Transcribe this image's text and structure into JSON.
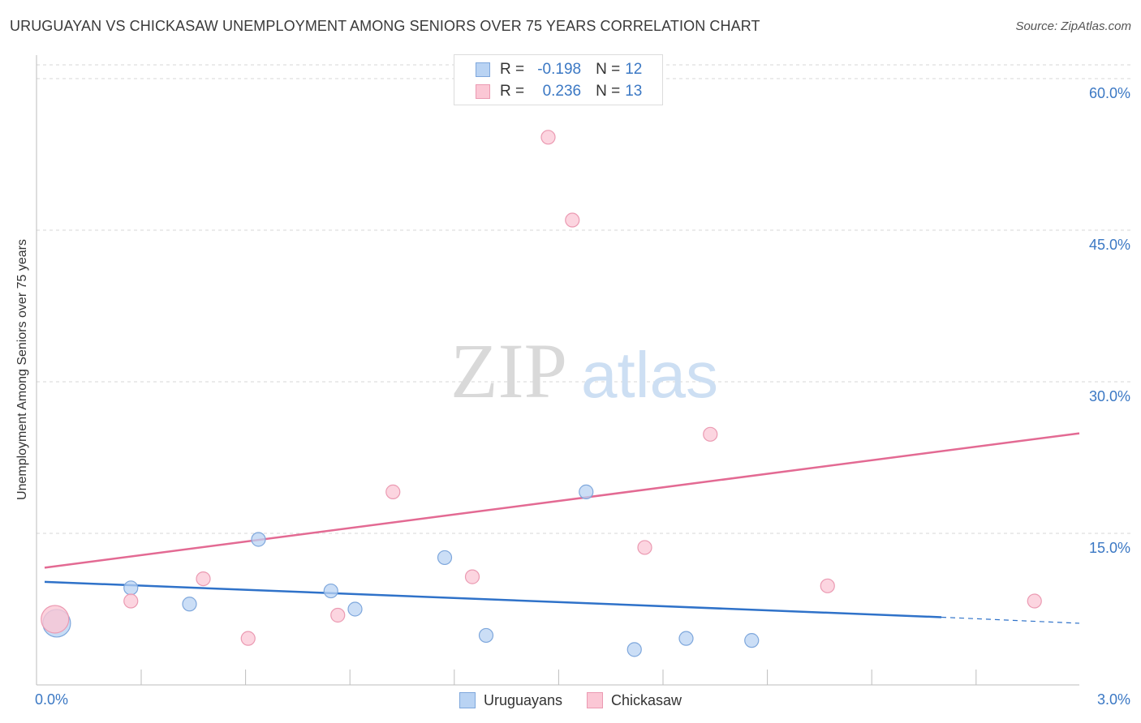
{
  "title": "URUGUAYAN VS CHICKASAW UNEMPLOYMENT AMONG SENIORS OVER 75 YEARS CORRELATION CHART",
  "source": "Source: ZipAtlas.com",
  "watermark": {
    "zip": "ZIP",
    "atlas": "atlas"
  },
  "legend": {
    "uruguayans": {
      "r_label": "R =",
      "r_value": "-0.198",
      "n_label": "N =",
      "n_value": "12"
    },
    "chickasaw": {
      "r_label": "R =",
      "r_value": "0.236",
      "n_label": "N =",
      "n_value": "13"
    }
  },
  "colors": {
    "uruguayans_fill": "#b9d3f3",
    "uruguayans_stroke": "#7ea7dc",
    "uruguayans_line": "#2f72c9",
    "chickasaw_fill": "#fbc7d5",
    "chickasaw_stroke": "#eb9ab2",
    "chickasaw_line": "#e36a93",
    "axis_text": "#3b78c4",
    "grid": "#d7d7d7"
  },
  "chart_data": {
    "type": "scatter",
    "title": "URUGUAYAN VS CHICKASAW UNEMPLOYMENT AMONG SENIORS OVER 75 YEARS CORRELATION CHART",
    "xlabel": "",
    "ylabel": "Unemployment Among Seniors over 75 years",
    "xlim": [
      0,
      3.0
    ],
    "ylim": [
      0,
      60.0
    ],
    "x_tick_labels": [
      "0.0%",
      "3.0%"
    ],
    "y_ticks": [
      15,
      30,
      45,
      60
    ],
    "y_tick_labels": [
      "15.0%",
      "30.0%",
      "45.0%",
      "60.0%"
    ],
    "legend_position": "top-center",
    "bottom_legend": [
      "Uruguayans",
      "Chickasaw"
    ],
    "series": [
      {
        "name": "Uruguayans",
        "points": [
          {
            "x": 0.035,
            "y": 6.1,
            "big": true
          },
          {
            "x": 0.25,
            "y": 9.6
          },
          {
            "x": 0.42,
            "y": 8.0
          },
          {
            "x": 0.62,
            "y": 14.4
          },
          {
            "x": 0.83,
            "y": 9.3
          },
          {
            "x": 0.9,
            "y": 7.5
          },
          {
            "x": 1.16,
            "y": 12.6
          },
          {
            "x": 1.28,
            "y": 4.9
          },
          {
            "x": 1.57,
            "y": 19.1
          },
          {
            "x": 1.71,
            "y": 3.5
          },
          {
            "x": 1.86,
            "y": 4.6
          },
          {
            "x": 2.05,
            "y": 4.4
          }
        ],
        "trend": {
          "x0": 0.0,
          "y0": 10.2,
          "x1": 2.6,
          "y1": 6.7,
          "dashed_to_x": 3.0,
          "dashed_to_y": 6.1
        }
      },
      {
        "name": "Chickasaw",
        "points": [
          {
            "x": 0.03,
            "y": 6.5,
            "big": true
          },
          {
            "x": 0.25,
            "y": 8.3
          },
          {
            "x": 0.46,
            "y": 10.5
          },
          {
            "x": 0.59,
            "y": 4.6
          },
          {
            "x": 0.85,
            "y": 6.9
          },
          {
            "x": 1.01,
            "y": 19.1
          },
          {
            "x": 1.24,
            "y": 10.7
          },
          {
            "x": 1.46,
            "y": 54.2
          },
          {
            "x": 1.53,
            "y": 46.0
          },
          {
            "x": 1.74,
            "y": 13.6
          },
          {
            "x": 1.93,
            "y": 24.8
          },
          {
            "x": 2.27,
            "y": 9.8
          },
          {
            "x": 2.87,
            "y": 8.3
          }
        ],
        "trend": {
          "x0": 0.0,
          "y0": 11.6,
          "x1": 3.0,
          "y1": 24.9
        }
      }
    ]
  }
}
